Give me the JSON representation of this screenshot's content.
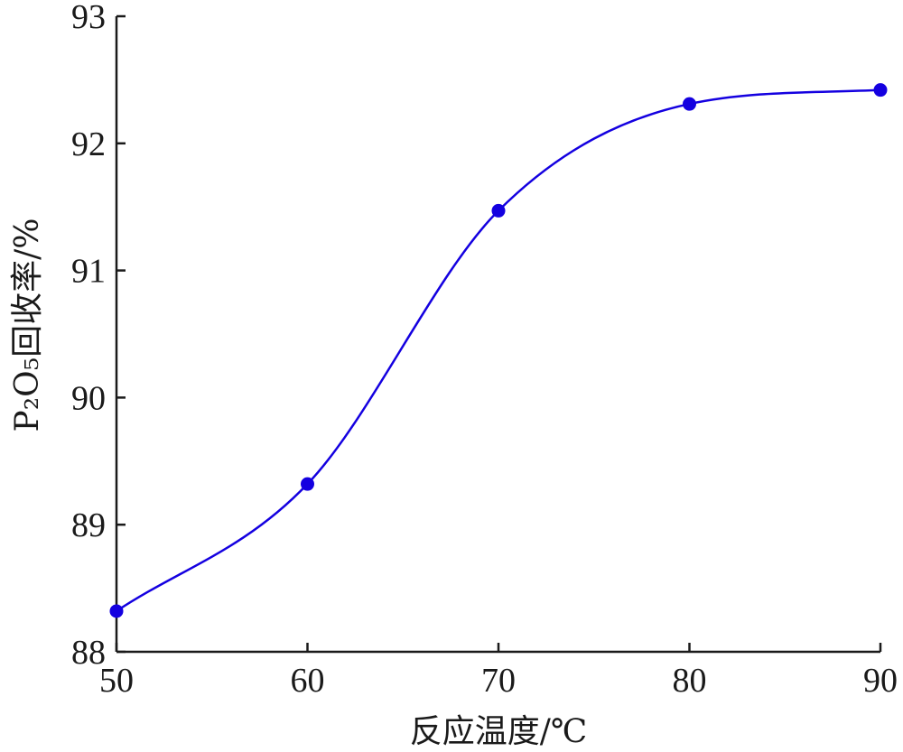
{
  "chart_data": {
    "type": "line",
    "xlabel": "反应温度/℃",
    "ylabel": "P₂O₅回收率/%",
    "xlim": [
      50,
      90
    ],
    "ylim": [
      88,
      93
    ],
    "x_ticks": [
      "50",
      "60",
      "70",
      "80",
      "90"
    ],
    "y_ticks": [
      "88",
      "89",
      "90",
      "91",
      "92",
      "93"
    ],
    "series": [
      {
        "x": [
          50,
          60,
          70,
          80,
          90
        ],
        "values": [
          88.32,
          89.32,
          91.47,
          92.31,
          92.42
        ],
        "color": "#1400e0",
        "marker": "circle",
        "smooth": true
      }
    ],
    "grid": false,
    "legend": "none"
  }
}
